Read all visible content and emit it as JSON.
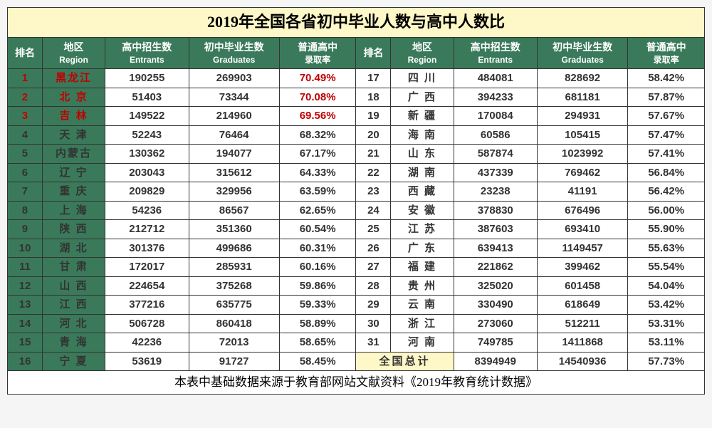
{
  "title": "2019年全国各省初中毕业人数与高中人数比",
  "headers": {
    "rank": "排名",
    "region": "地区",
    "region_en": "Region",
    "entrants": "高中招生数",
    "entrants_en": "Entrants",
    "graduates": "初中毕业生数",
    "graduates_en": "Graduates",
    "rate": "普通高中",
    "rate2": "录取率"
  },
  "colors": {
    "title_bg": "#fef7c7",
    "header_bg": "#3a7a5a",
    "header_fg": "#ffffff",
    "highlight_red": "#c00000",
    "border": "#333333"
  },
  "left": [
    {
      "rank": "1",
      "region": "黑龙江",
      "entrants": "190255",
      "graduates": "269903",
      "rate": "70.49%",
      "hl": true
    },
    {
      "rank": "2",
      "region": "北  京",
      "entrants": "51403",
      "graduates": "73344",
      "rate": "70.08%",
      "hl": true
    },
    {
      "rank": "3",
      "region": "吉  林",
      "entrants": "149522",
      "graduates": "214960",
      "rate": "69.56%",
      "hl": true
    },
    {
      "rank": "4",
      "region": "天  津",
      "entrants": "52243",
      "graduates": "76464",
      "rate": "68.32%"
    },
    {
      "rank": "5",
      "region": "内蒙古",
      "entrants": "130362",
      "graduates": "194077",
      "rate": "67.17%"
    },
    {
      "rank": "6",
      "region": "辽  宁",
      "entrants": "203043",
      "graduates": "315612",
      "rate": "64.33%"
    },
    {
      "rank": "7",
      "region": "重  庆",
      "entrants": "209829",
      "graduates": "329956",
      "rate": "63.59%"
    },
    {
      "rank": "8",
      "region": "上  海",
      "entrants": "54236",
      "graduates": "86567",
      "rate": "62.65%"
    },
    {
      "rank": "9",
      "region": "陕  西",
      "entrants": "212712",
      "graduates": "351360",
      "rate": "60.54%"
    },
    {
      "rank": "10",
      "region": "湖  北",
      "entrants": "301376",
      "graduates": "499686",
      "rate": "60.31%"
    },
    {
      "rank": "11",
      "region": "甘  肃",
      "entrants": "172017",
      "graduates": "285931",
      "rate": "60.16%"
    },
    {
      "rank": "12",
      "region": "山  西",
      "entrants": "224654",
      "graduates": "375268",
      "rate": "59.86%"
    },
    {
      "rank": "13",
      "region": "江  西",
      "entrants": "377216",
      "graduates": "635775",
      "rate": "59.33%"
    },
    {
      "rank": "14",
      "region": "河  北",
      "entrants": "506728",
      "graduates": "860418",
      "rate": "58.89%"
    },
    {
      "rank": "15",
      "region": "青  海",
      "entrants": "42236",
      "graduates": "72013",
      "rate": "58.65%"
    },
    {
      "rank": "16",
      "region": "宁  夏",
      "entrants": "53619",
      "graduates": "91727",
      "rate": "58.45%"
    }
  ],
  "right": [
    {
      "rank": "17",
      "region": "四  川",
      "entrants": "484081",
      "graduates": "828692",
      "rate": "58.42%"
    },
    {
      "rank": "18",
      "region": "广  西",
      "entrants": "394233",
      "graduates": "681181",
      "rate": "57.87%"
    },
    {
      "rank": "19",
      "region": "新  疆",
      "entrants": "170084",
      "graduates": "294931",
      "rate": "57.67%"
    },
    {
      "rank": "20",
      "region": "海  南",
      "entrants": "60586",
      "graduates": "105415",
      "rate": "57.47%"
    },
    {
      "rank": "21",
      "region": "山  东",
      "entrants": "587874",
      "graduates": "1023992",
      "rate": "57.41%"
    },
    {
      "rank": "22",
      "region": "湖  南",
      "entrants": "437339",
      "graduates": "769462",
      "rate": "56.84%"
    },
    {
      "rank": "23",
      "region": "西  藏",
      "entrants": "23238",
      "graduates": "41191",
      "rate": "56.42%"
    },
    {
      "rank": "24",
      "region": "安  徽",
      "entrants": "378830",
      "graduates": "676496",
      "rate": "56.00%"
    },
    {
      "rank": "25",
      "region": "江  苏",
      "entrants": "387603",
      "graduates": "693410",
      "rate": "55.90%"
    },
    {
      "rank": "26",
      "region": "广  东",
      "entrants": "639413",
      "graduates": "1149457",
      "rate": "55.63%"
    },
    {
      "rank": "27",
      "region": "福  建",
      "entrants": "221862",
      "graduates": "399462",
      "rate": "55.54%"
    },
    {
      "rank": "28",
      "region": "贵  州",
      "entrants": "325020",
      "graduates": "601458",
      "rate": "54.04%"
    },
    {
      "rank": "29",
      "region": "云  南",
      "entrants": "330490",
      "graduates": "618649",
      "rate": "53.42%"
    },
    {
      "rank": "30",
      "region": "浙  江",
      "entrants": "273060",
      "graduates": "512211",
      "rate": "53.31%"
    },
    {
      "rank": "31",
      "region": "河  南",
      "entrants": "749785",
      "graduates": "1411868",
      "rate": "53.11%"
    }
  ],
  "total": {
    "label": "全国总计",
    "entrants": "8394949",
    "graduates": "14540936",
    "rate": "57.73%"
  },
  "footer": "本表中基础数据来源于教育部网站文献资料《2019年教育统计数据》"
}
